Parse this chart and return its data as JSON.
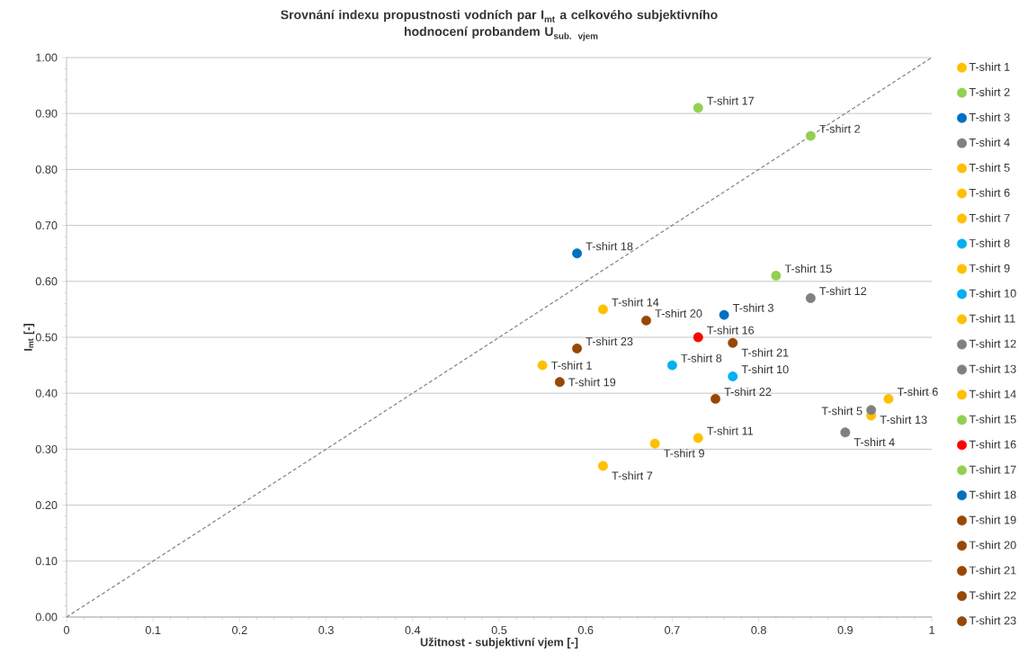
{
  "chart_data": {
    "type": "scatter",
    "title": "\\textbf{Srovnání indexu propustnosti vodních par I}_{\\textbf{mt}}\\textbf{ a celkového subjektivního}\\allowbreak\\textbf{ hodnocení probandem U}_{\\textbf{sub. vjem}}",
    "xlabel": "Užitnost - subjektivní vjem [-]",
    "ylabel": "I$_{mt}$ [-]",
    "xlim": [
      0,
      1
    ],
    "ylim": [
      0,
      1
    ],
    "xticks": [
      0,
      0.1,
      0.2,
      0.3,
      0.4,
      0.5,
      0.6,
      0.7,
      0.8,
      0.9,
      1
    ],
    "yticks": [
      {
        "value": 0,
        "label": "0.00"
      },
      {
        "value": 0.1,
        "label": "0.10"
      },
      {
        "value": 0.2,
        "label": "0.20"
      },
      {
        "value": 0.3,
        "label": "0.30"
      },
      {
        "value": 0.4,
        "label": "0.40"
      },
      {
        "value": 0.5,
        "label": "0.50"
      },
      {
        "value": 0.6,
        "label": "0.60"
      },
      {
        "value": 0.7,
        "label": "0.70"
      },
      {
        "value": 0.8,
        "label": "0.80"
      },
      {
        "value": 0.9,
        "label": "0.90"
      },
      {
        "value": 1,
        "label": "1.00"
      }
    ],
    "grid": "y",
    "legend": "right",
    "marker": "circle",
    "series": [
      {
        "name": "T-shirt 1",
        "color": "#ffc000",
        "x": [
          0.55
        ],
        "values": [
          0.45
        ]
      },
      {
        "name": "T-shirt 2",
        "color": "#92d050",
        "x": [
          0.86
        ],
        "values": [
          0.86
        ]
      },
      {
        "name": "T-shirt 3",
        "color": "#0070c0",
        "x": [
          0.76
        ],
        "values": [
          0.54
        ]
      },
      {
        "name": "T-shirt 4",
        "color": "#808080",
        "x": [
          0.9
        ],
        "values": [
          0.33
        ]
      },
      {
        "name": "T-shirt 5",
        "color": "#ffc000",
        "x": [
          0.93
        ],
        "values": [
          0.36
        ]
      },
      {
        "name": "T-shirt 6",
        "color": "#ffc000",
        "x": [
          0.95
        ],
        "values": [
          0.39
        ]
      },
      {
        "name": "T-shirt 7",
        "color": "#ffc000",
        "x": [
          0.62
        ],
        "values": [
          0.27
        ]
      },
      {
        "name": "T-shirt 8",
        "color": "#00b0f0",
        "x": [
          0.7
        ],
        "values": [
          0.45
        ]
      },
      {
        "name": "T-shirt 9",
        "color": "#ffc000",
        "x": [
          0.68
        ],
        "values": [
          0.31
        ]
      },
      {
        "name": "T-shirt 10",
        "color": "#00b0f0",
        "x": [
          0.77
        ],
        "values": [
          0.43
        ]
      },
      {
        "name": "T-shirt 11",
        "color": "#ffc000",
        "x": [
          0.73
        ],
        "values": [
          0.32
        ]
      },
      {
        "name": "T-shirt 12",
        "color": "#808080",
        "x": [
          0.86
        ],
        "values": [
          0.57
        ]
      },
      {
        "name": "T-shirt 13",
        "color": "#808080",
        "x": [
          0.93
        ],
        "values": [
          0.37
        ]
      },
      {
        "name": "T-shirt 14",
        "color": "#ffc000",
        "x": [
          0.62
        ],
        "values": [
          0.55
        ]
      },
      {
        "name": "T-shirt 15",
        "color": "#92d050",
        "x": [
          0.82
        ],
        "values": [
          0.61
        ]
      },
      {
        "name": "T-shirt 16",
        "color": "#ff0000",
        "x": [
          0.73
        ],
        "values": [
          0.5
        ]
      },
      {
        "name": "T-shirt 17",
        "color": "#92d050",
        "x": [
          0.73
        ],
        "values": [
          0.91
        ]
      },
      {
        "name": "T-shirt 18",
        "color": "#0070c0",
        "x": [
          0.59
        ],
        "values": [
          0.65
        ]
      },
      {
        "name": "T-shirt 19",
        "color": "#974706",
        "x": [
          0.57
        ],
        "values": [
          0.42
        ]
      },
      {
        "name": "T-shirt 20",
        "color": "#974706",
        "x": [
          0.67
        ],
        "values": [
          0.53
        ]
      },
      {
        "name": "T-shirt 21",
        "color": "#974706",
        "x": [
          0.77
        ],
        "values": [
          0.49
        ]
      },
      {
        "name": "T-shirt 22",
        "color": "#974706",
        "x": [
          0.75
        ],
        "values": [
          0.39
        ]
      },
      {
        "name": "T-shirt 23",
        "color": "#974706",
        "x": [
          0.59
        ],
        "values": [
          0.48
        ]
      },
      {
        "type": "line",
        "color": "#808080",
        "line_style": "dashed",
        "marker": "none",
        "x": [
          0,
          1
        ],
        "values": [
          0,
          1
        ]
      }
    ]
  }
}
